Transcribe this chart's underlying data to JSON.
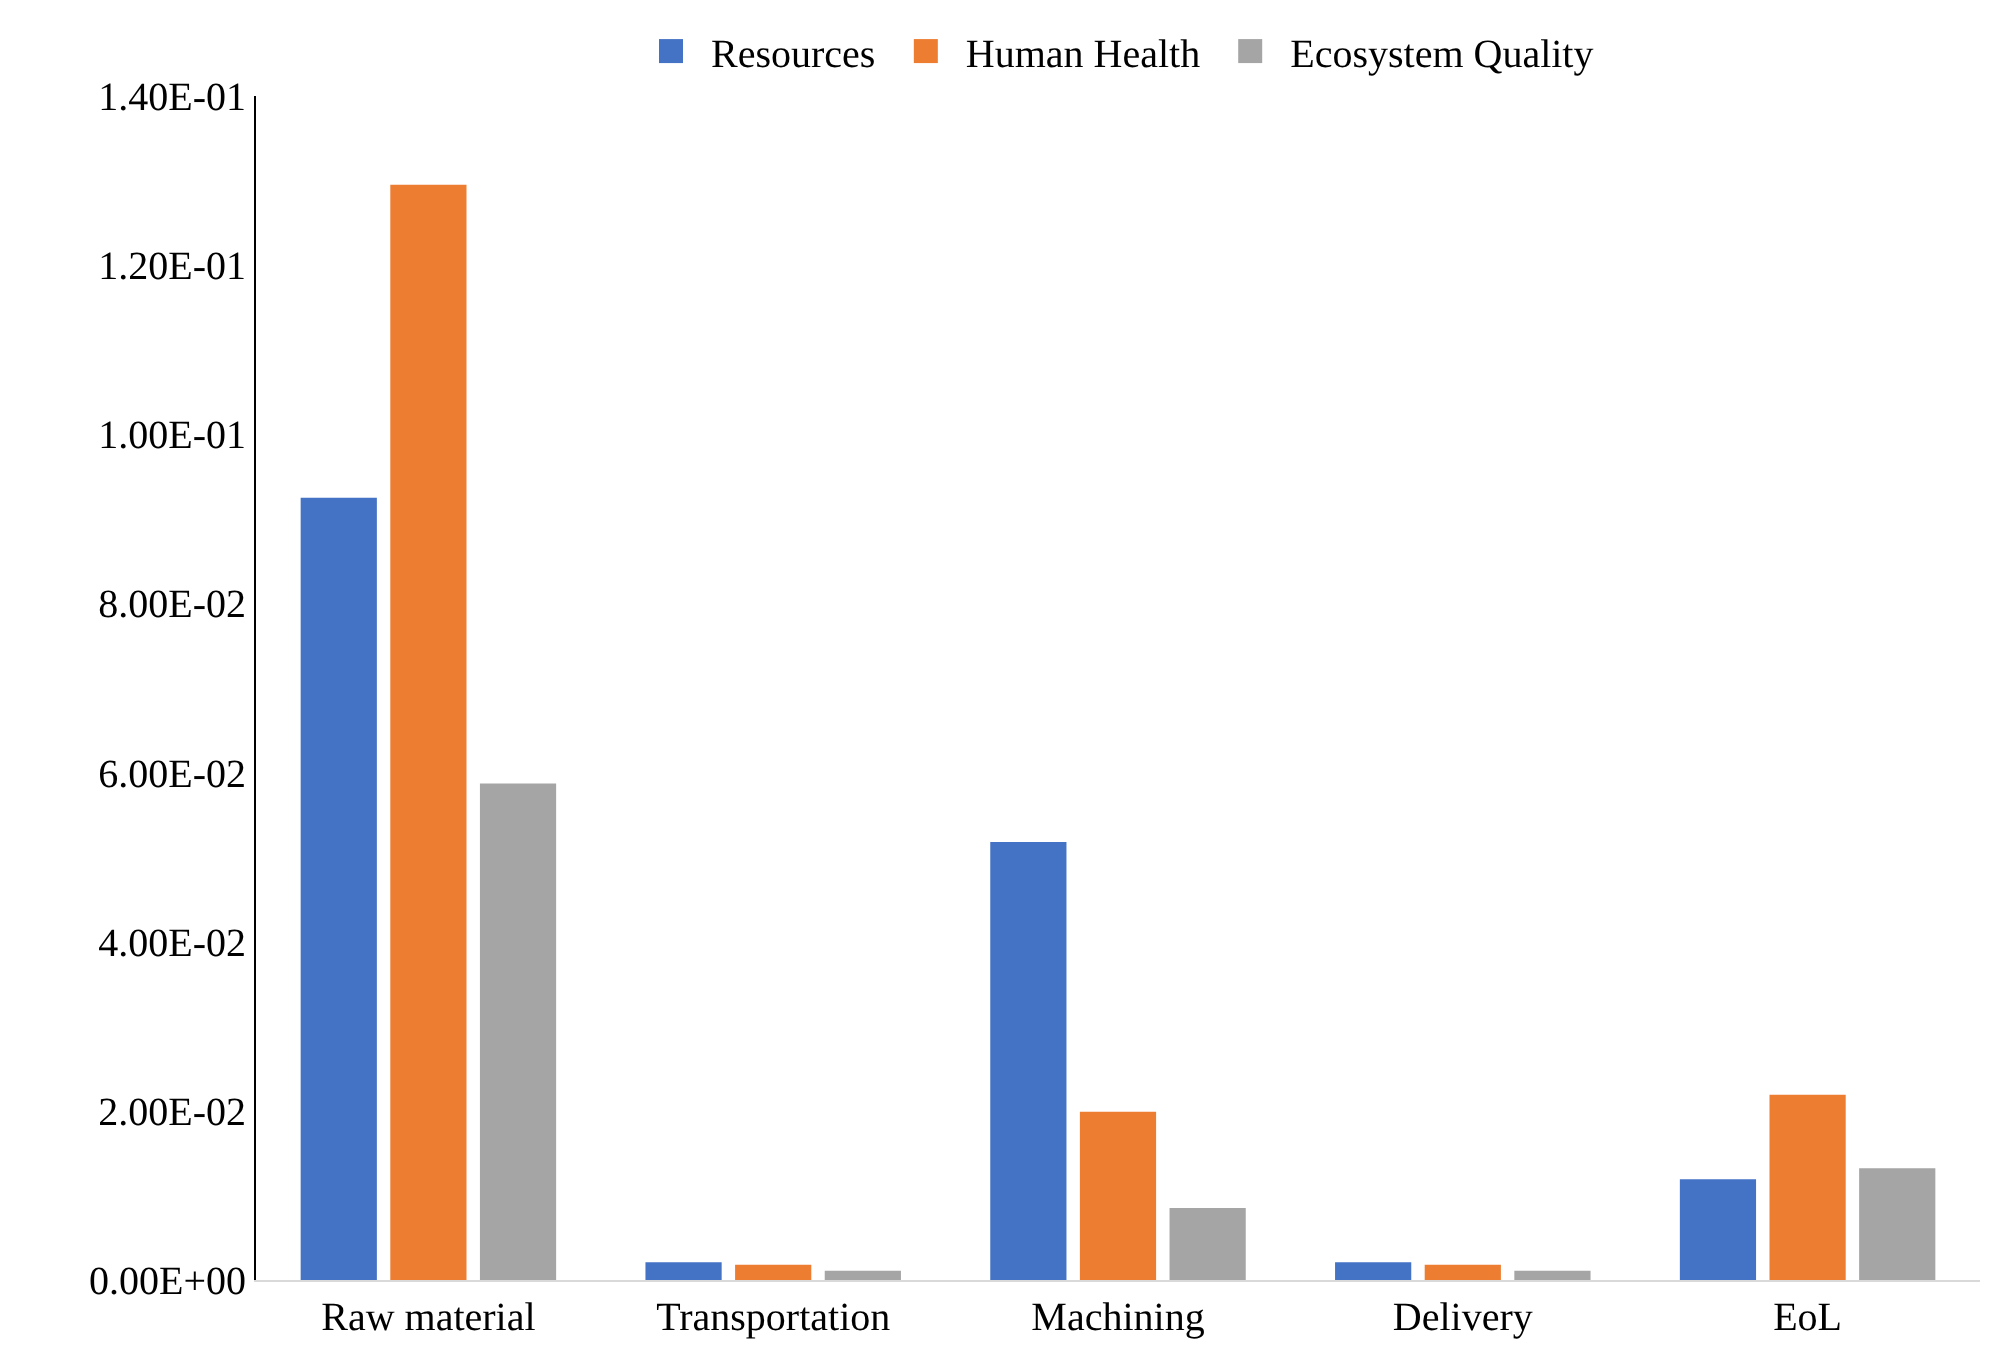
{
  "chart_data": {
    "type": "bar",
    "categories": [
      "Raw material",
      "Transportation",
      "Machining",
      "Delivery",
      "EoL"
    ],
    "series": [
      {
        "name": "Resources",
        "color": "#4472c4",
        "values": [
          0.0925,
          0.0021,
          0.0518,
          0.0021,
          0.0119
        ]
      },
      {
        "name": "Human Health",
        "color": "#ed7d31",
        "values": [
          0.1295,
          0.0018,
          0.0199,
          0.0018,
          0.0219
        ]
      },
      {
        "name": "Ecosystem Quality",
        "color": "#a5a5a5",
        "values": [
          0.0587,
          0.0011,
          0.0085,
          0.0011,
          0.0132
        ]
      }
    ],
    "ylim": [
      0,
      0.14
    ],
    "yticks": [
      {
        "value": 0,
        "label": "0.00E+00"
      },
      {
        "value": 0.02,
        "label": "2.00E-02"
      },
      {
        "value": 0.04,
        "label": "4.00E-02"
      },
      {
        "value": 0.06,
        "label": "6.00E-02"
      },
      {
        "value": 0.08,
        "label": "8.00E-02"
      },
      {
        "value": 0.1,
        "label": "1.00E-01"
      },
      {
        "value": 0.12,
        "label": "1.20E-01"
      },
      {
        "value": 0.14,
        "label": "1.40E-01"
      }
    ],
    "grid": false,
    "legend": "top"
  }
}
